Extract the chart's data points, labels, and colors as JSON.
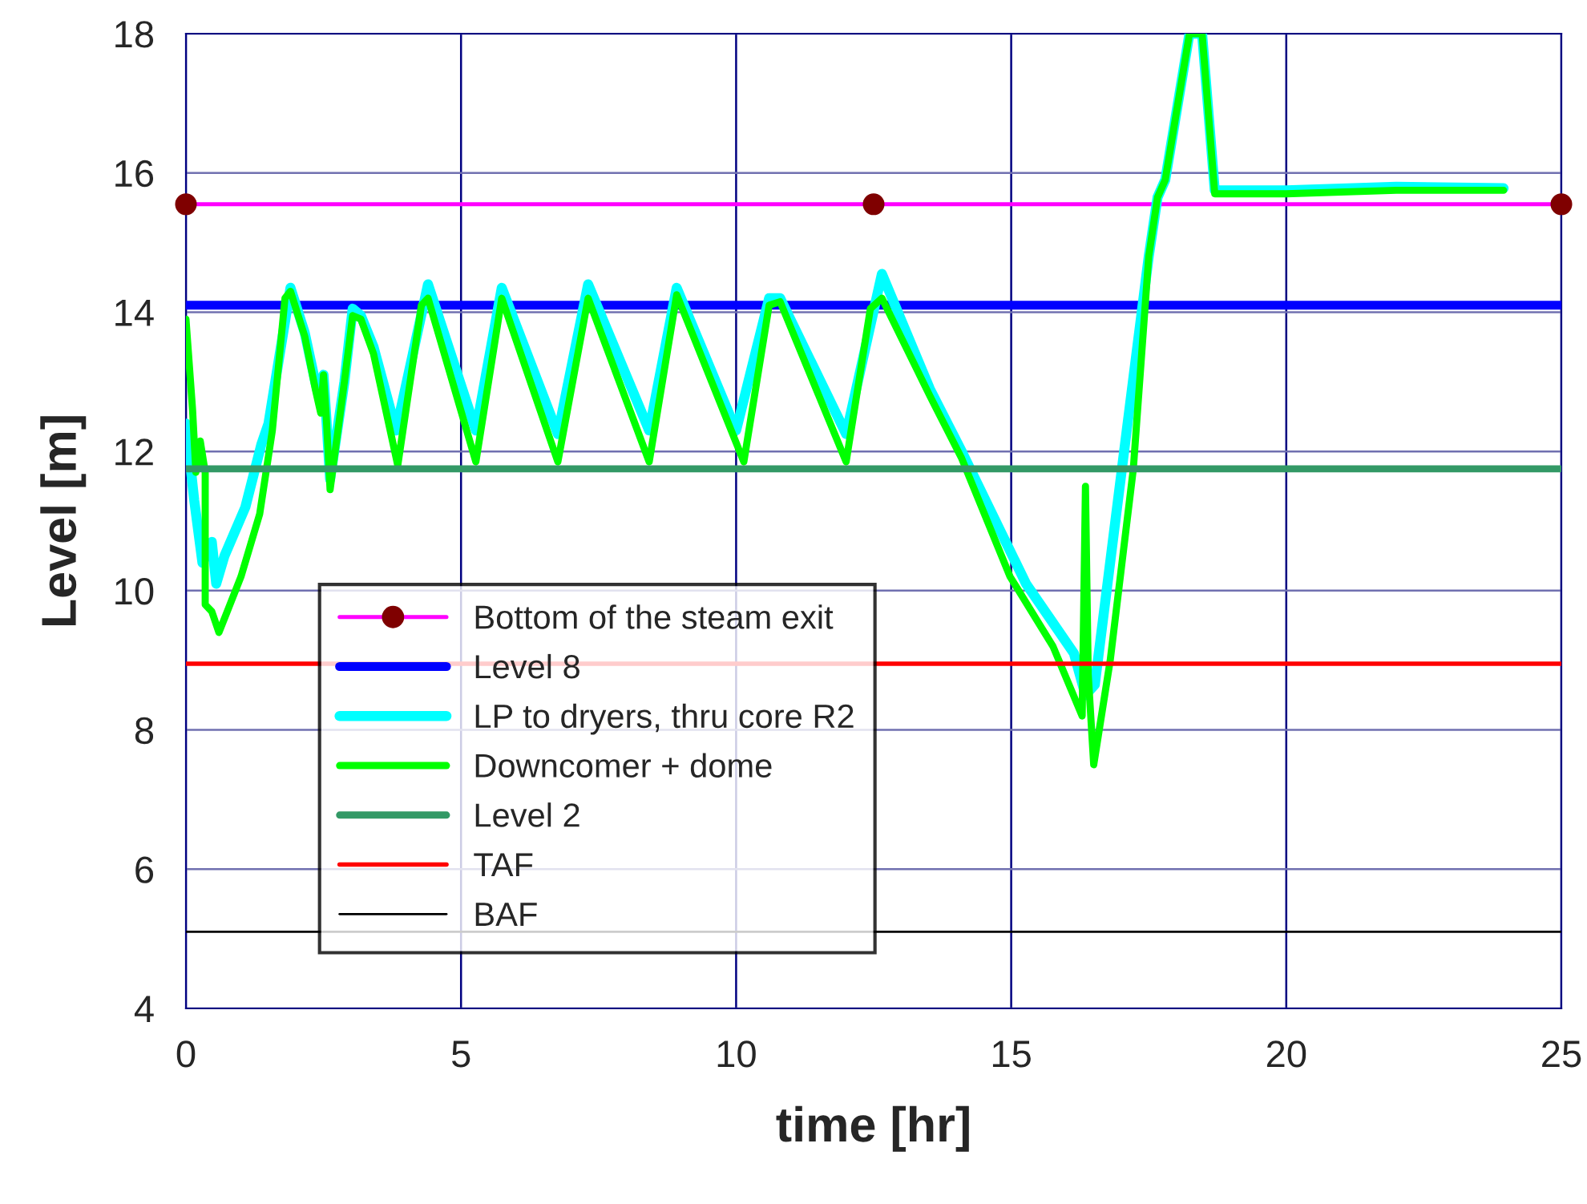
{
  "chart_data": {
    "type": "line",
    "xlabel": "time [hr]",
    "ylabel": "Level [m]",
    "xlim": [
      0,
      25
    ],
    "xticks": [
      0,
      5,
      10,
      15,
      20,
      25
    ],
    "ylim": [
      4,
      18
    ],
    "yticks": [
      4,
      6,
      8,
      10,
      12,
      14,
      16,
      18
    ],
    "grid": true,
    "legend": "bottom left",
    "series": [
      {
        "name": "Bottom of the steam exit",
        "color": "#ff00ff",
        "marker": "circle",
        "x": [
          0,
          12.5,
          25
        ],
        "values": [
          15.55,
          15.55,
          15.55
        ]
      },
      {
        "name": "Level 8",
        "color": "#0000ff",
        "x": [
          0,
          25
        ],
        "values": [
          14.1,
          14.1
        ]
      },
      {
        "name": "LP to dryers, thru core R2",
        "color": "#00ffff",
        "x": [
          0,
          0.15,
          0.3,
          0.47,
          0.55,
          0.7,
          1.08,
          1.37,
          1.5,
          1.9,
          2.16,
          2.35,
          2.45,
          2.5,
          2.55,
          2.62,
          2.88,
          3.03,
          3.18,
          3.41,
          3.82,
          4.4,
          5.27,
          5.74,
          6.76,
          7.31,
          8.42,
          8.92,
          10.0,
          10.6,
          10.8,
          12.0,
          12.65,
          13.52,
          14.1,
          15.27,
          16.14,
          16.35,
          16.52,
          17.1,
          17.5,
          17.66,
          17.8,
          18.24,
          18.47,
          18.7,
          20,
          22,
          23.95
        ],
        "values": [
          12.4,
          11.3,
          10.4,
          10.7,
          10.1,
          10.5,
          11.2,
          12.1,
          12.4,
          14.35,
          13.7,
          13.0,
          12.7,
          13.1,
          12.5,
          11.6,
          13.0,
          14.05,
          13.95,
          13.5,
          12.3,
          14.4,
          12.3,
          14.35,
          12.25,
          14.4,
          12.3,
          14.35,
          12.3,
          14.2,
          14.2,
          12.25,
          14.55,
          12.9,
          12.0,
          10.1,
          9.1,
          8.5,
          8.65,
          12.3,
          14.8,
          15.65,
          15.9,
          18,
          18,
          15.75,
          15.75,
          15.8,
          15.78
        ]
      },
      {
        "name": "Downcomer + dome",
        "color": "#00ff00",
        "x": [
          0,
          0.12,
          0.18,
          0.26,
          0.35,
          0.35,
          0.47,
          0.6,
          1.0,
          1.34,
          1.57,
          1.8,
          1.9,
          2.16,
          2.35,
          2.45,
          2.5,
          2.55,
          2.62,
          2.88,
          3.03,
          3.18,
          3.41,
          3.85,
          4.28,
          4.4,
          5.27,
          5.74,
          6.76,
          7.31,
          8.42,
          8.92,
          10.14,
          10.6,
          10.8,
          12.0,
          12.44,
          12.65,
          13.52,
          14.1,
          14.98,
          15.76,
          16.29,
          16.35,
          16.4,
          16.5,
          16.8,
          17.22,
          17.5,
          17.66,
          17.8,
          18.24,
          18.47,
          18.7,
          20,
          22,
          23.95
        ],
        "values": [
          13.9,
          12.6,
          11.7,
          12.15,
          11.7,
          9.8,
          9.7,
          9.4,
          10.2,
          11.1,
          12.3,
          14.2,
          14.3,
          13.65,
          12.9,
          12.55,
          13.1,
          12.5,
          11.45,
          13.0,
          13.95,
          13.9,
          13.4,
          11.8,
          14.1,
          14.2,
          11.85,
          14.2,
          11.85,
          14.2,
          11.85,
          14.25,
          11.85,
          14.1,
          14.15,
          11.85,
          14.05,
          14.2,
          12.8,
          11.9,
          10.2,
          9.2,
          8.2,
          11.5,
          8.8,
          7.5,
          9.0,
          11.75,
          14.8,
          15.65,
          15.9,
          18,
          18,
          15.7,
          15.7,
          15.75,
          15.75
        ]
      },
      {
        "name": "Level 2",
        "color": "#339966",
        "x": [
          0,
          25
        ],
        "values": [
          11.75,
          11.75
        ]
      },
      {
        "name": "TAF",
        "color": "#ff0000",
        "x": [
          0,
          25
        ],
        "values": [
          8.95,
          8.95
        ]
      },
      {
        "name": "BAF",
        "color": "#000000",
        "x": [
          0,
          25
        ],
        "values": [
          5.1,
          5.1
        ]
      }
    ]
  }
}
